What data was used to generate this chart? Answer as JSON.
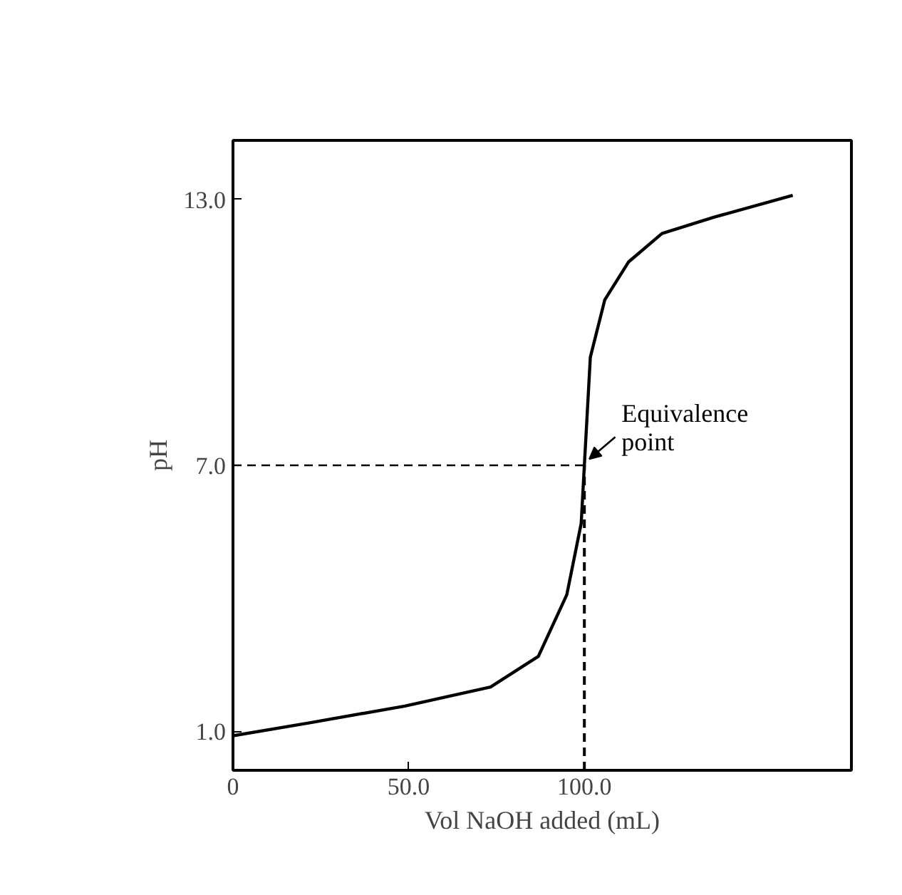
{
  "chart_data": {
    "type": "line",
    "xlabel": "Vol NaOH added (mL)",
    "ylabel": "pH",
    "x": [
      0,
      21.8,
      48.9,
      73.3,
      86.9,
      95,
      99.1,
      100,
      101.7,
      105.8,
      112.6,
      122.1,
      137,
      159.3
    ],
    "series": [
      {
        "color": "#000000",
        "values": [
          0.9,
          1.19,
          1.57,
          2.0,
          2.69,
          4.08,
          5.69,
          7.0,
          9.44,
          10.73,
          11.59,
          12.23,
          12.6,
          13.09
        ]
      }
    ],
    "xlim": [
      0,
      176
    ],
    "ylim": [
      0.12,
      14.33
    ],
    "xticks": [
      {
        "value": 0,
        "label": "0"
      },
      {
        "value": 50,
        "label": "50.0"
      },
      {
        "value": 100,
        "label": "100.0"
      }
    ],
    "yticks": [
      {
        "value": 1,
        "label": "1.0"
      },
      {
        "value": 7,
        "label": "7.0"
      },
      {
        "value": 13,
        "label": "13.0"
      }
    ],
    "ref_lines": [
      {
        "axis": "y",
        "value": 7,
        "line_style": "dashed"
      },
      {
        "axis": "x",
        "value": 100,
        "line_style": "dashed"
      }
    ],
    "annotations": [
      {
        "text": "Equivalence\npoint",
        "x": 100,
        "y": 7
      }
    ],
    "grid": false,
    "marker": "none",
    "line_style": "solid"
  }
}
